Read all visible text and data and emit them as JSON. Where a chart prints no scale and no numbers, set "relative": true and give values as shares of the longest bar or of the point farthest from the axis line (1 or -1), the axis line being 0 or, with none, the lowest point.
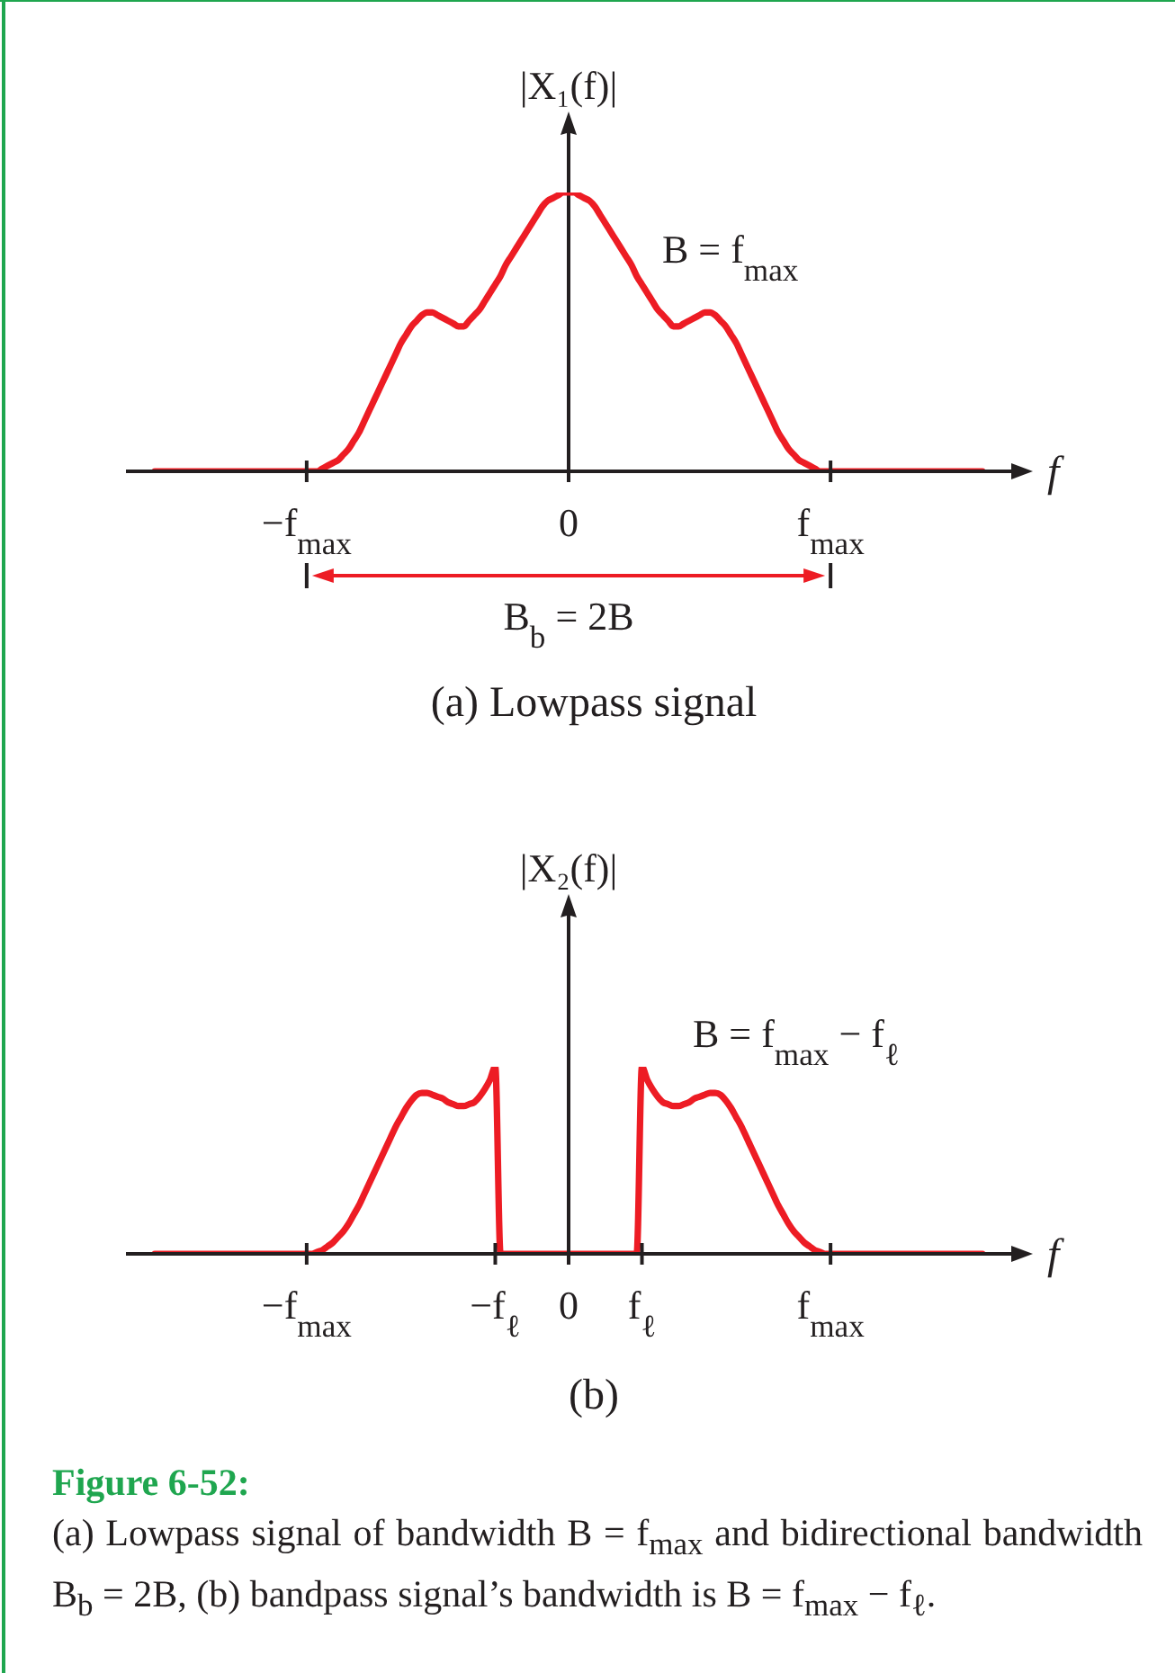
{
  "chart_data": [
    {
      "type": "line",
      "title": "(a) Lowpass signal",
      "xlabel": "f",
      "ylabel": "|X₁(f)|",
      "relative": true,
      "color": "#ed1c24",
      "categories": [
        null,
        null,
        null,
        null,
        null,
        null,
        null,
        null,
        null,
        null,
        null,
        null,
        null,
        null,
        null,
        null,
        null,
        null,
        null,
        null,
        null,
        null,
        null,
        null,
        null,
        null,
        null,
        null,
        null,
        "−f$_{max}$",
        null,
        null,
        null,
        null,
        null,
        null,
        null,
        null,
        null,
        null,
        null,
        null,
        null,
        null,
        null,
        null,
        null,
        null,
        null,
        null,
        null,
        null,
        null,
        null,
        null,
        null,
        null,
        null,
        null,
        null,
        null,
        null,
        null,
        null,
        null,
        null,
        null,
        null,
        null,
        null,
        null,
        null,
        null,
        null,
        null,
        null,
        null,
        null,
        null,
        "0",
        null,
        null,
        null,
        null,
        null,
        null,
        null,
        null,
        null,
        null,
        null,
        null,
        null,
        null,
        null,
        null,
        null,
        null,
        null,
        null,
        null,
        null,
        null,
        null,
        null,
        null,
        null,
        null,
        null,
        null,
        null,
        null,
        null,
        null,
        null,
        null,
        null,
        null,
        null,
        null,
        null,
        null,
        null,
        null,
        null,
        null,
        null,
        null,
        null,
        "f$_{max}$",
        null,
        null,
        null,
        null,
        null,
        null,
        null,
        null,
        null,
        null,
        null,
        null,
        null,
        null,
        null,
        null,
        null,
        null,
        null,
        null,
        null,
        null,
        null,
        null,
        null,
        null,
        null,
        null,
        null
      ],
      "values": [
        0,
        0,
        0,
        0,
        0,
        0,
        0,
        0,
        0,
        0,
        0,
        0,
        0,
        0,
        0,
        0,
        0,
        0,
        0,
        0,
        0,
        0,
        0,
        0,
        0,
        0,
        0,
        0,
        0,
        0,
        0,
        0,
        0.01,
        0.02,
        0.03,
        0.04,
        0.06,
        0.08,
        0.11,
        0.14,
        0.18,
        0.22,
        0.26,
        0.3,
        0.34,
        0.38,
        0.42,
        0.46,
        0.49,
        0.52,
        0.54,
        0.56,
        0.57,
        0.57,
        0.56,
        0.55,
        0.54,
        0.53,
        0.52,
        0.52,
        0.54,
        0.56,
        0.58,
        0.61,
        0.64,
        0.67,
        0.7,
        0.74,
        0.77,
        0.8,
        0.83,
        0.86,
        0.89,
        0.92,
        0.95,
        0.97,
        0.98,
        0.99,
        1,
        1,
        1,
        0.99,
        0.98,
        0.97,
        0.95,
        0.92,
        0.89,
        0.86,
        0.83,
        0.8,
        0.77,
        0.74,
        0.7,
        0.67,
        0.64,
        0.61,
        0.58,
        0.56,
        0.54,
        0.52,
        0.52,
        0.53,
        0.54,
        0.55,
        0.56,
        0.57,
        0.57,
        0.56,
        0.54,
        0.52,
        0.49,
        0.46,
        0.42,
        0.38,
        0.34,
        0.3,
        0.26,
        0.22,
        0.18,
        0.14,
        0.11,
        0.08,
        0.06,
        0.04,
        0.03,
        0.02,
        0.01,
        0,
        0,
        0,
        0,
        0,
        0,
        0,
        0,
        0,
        0,
        0,
        0,
        0,
        0,
        0,
        0,
        0,
        0,
        0,
        0,
        0,
        0,
        0,
        0,
        0,
        0,
        0,
        0,
        0,
        0,
        0,
        0
      ],
      "annotations": [
        "B = f$_{max}$",
        "B$_{b}$ = 2B"
      ]
    },
    {
      "type": "line",
      "title": "(b)",
      "xlabel": "f",
      "ylabel": "|X₂(f)|",
      "relative": true,
      "color": "#ed1c24",
      "categories": [
        null,
        null,
        null,
        null,
        null,
        null,
        null,
        null,
        null,
        null,
        null,
        null,
        null,
        null,
        null,
        null,
        null,
        null,
        null,
        null,
        null,
        null,
        null,
        null,
        null,
        null,
        null,
        null,
        null,
        "−f$_{max}$",
        null,
        null,
        null,
        null,
        null,
        null,
        null,
        null,
        null,
        null,
        null,
        null,
        null,
        null,
        null,
        null,
        null,
        null,
        null,
        null,
        null,
        null,
        null,
        null,
        null,
        null,
        null,
        null,
        null,
        null,
        null,
        null,
        null,
        null,
        null,
        "−f$_{ℓ}$",
        null,
        null,
        null,
        null,
        null,
        null,
        null,
        null,
        null,
        null,
        null,
        null,
        null,
        "0",
        null,
        null,
        null,
        null,
        null,
        null,
        null,
        null,
        null,
        null,
        null,
        null,
        null,
        "f$_{ℓ}$",
        null,
        null,
        null,
        null,
        null,
        null,
        null,
        null,
        null,
        null,
        null,
        null,
        null,
        null,
        null,
        null,
        null,
        null,
        null,
        null,
        null,
        null,
        null,
        null,
        null,
        null,
        null,
        null,
        null,
        null,
        null,
        null,
        null,
        null,
        null,
        "f$_{max}$",
        null,
        null,
        null,
        null,
        null,
        null,
        null,
        null,
        null,
        null,
        null,
        null,
        null,
        null,
        null,
        null,
        null,
        null,
        null,
        null,
        null,
        null,
        null,
        null,
        null,
        null,
        null,
        null,
        null
      ],
      "values": [
        0,
        0,
        0,
        0,
        0,
        0,
        0,
        0,
        0,
        0,
        0,
        0,
        0,
        0,
        0,
        0,
        0,
        0,
        0,
        0,
        0,
        0,
        0,
        0,
        0,
        0,
        0,
        0,
        0,
        0,
        0,
        0.01,
        0.02,
        0.04,
        0.06,
        0.09,
        0.12,
        0.16,
        0.21,
        0.26,
        0.32,
        0.38,
        0.44,
        0.5,
        0.56,
        0.62,
        0.68,
        0.73,
        0.78,
        0.82,
        0.85,
        0.86,
        0.86,
        0.85,
        0.84,
        0.83,
        0.81,
        0.8,
        0.79,
        0.79,
        0.8,
        0.81,
        0.84,
        0.88,
        0.93,
        1,
        0,
        0,
        0,
        0,
        0,
        0,
        0,
        0,
        0,
        0,
        0,
        0,
        0,
        0,
        0,
        0,
        0,
        0,
        0,
        0,
        0,
        0,
        0,
        0,
        0,
        0,
        0,
        1,
        0.93,
        0.88,
        0.84,
        0.81,
        0.8,
        0.79,
        0.79,
        0.8,
        0.81,
        0.83,
        0.84,
        0.85,
        0.86,
        0.86,
        0.85,
        0.82,
        0.78,
        0.73,
        0.68,
        0.62,
        0.56,
        0.5,
        0.44,
        0.38,
        0.32,
        0.26,
        0.21,
        0.16,
        0.12,
        0.09,
        0.06,
        0.04,
        0.02,
        0.01,
        0,
        0,
        0,
        0,
        0,
        0,
        0,
        0,
        0,
        0,
        0,
        0,
        0,
        0,
        0,
        0,
        0,
        0,
        0,
        0,
        0,
        0,
        0,
        0,
        0,
        0,
        0,
        0,
        0,
        0,
        0
      ],
      "annotations": [
        "B = f$_{max}$ − f$_{ℓ}$"
      ]
    },
    {
      "type": "other",
      "title": "Figure 6-52:",
      "annotations": [
        "(a) Lowpass signal of bandwidth B = f$_{max}$ and bidirectional bandwidth B$_{b}$ = 2B, (b) bandpass signal’s bandwidth is B = f$_{max}$ − f$_{ℓ}$."
      ]
    }
  ]
}
